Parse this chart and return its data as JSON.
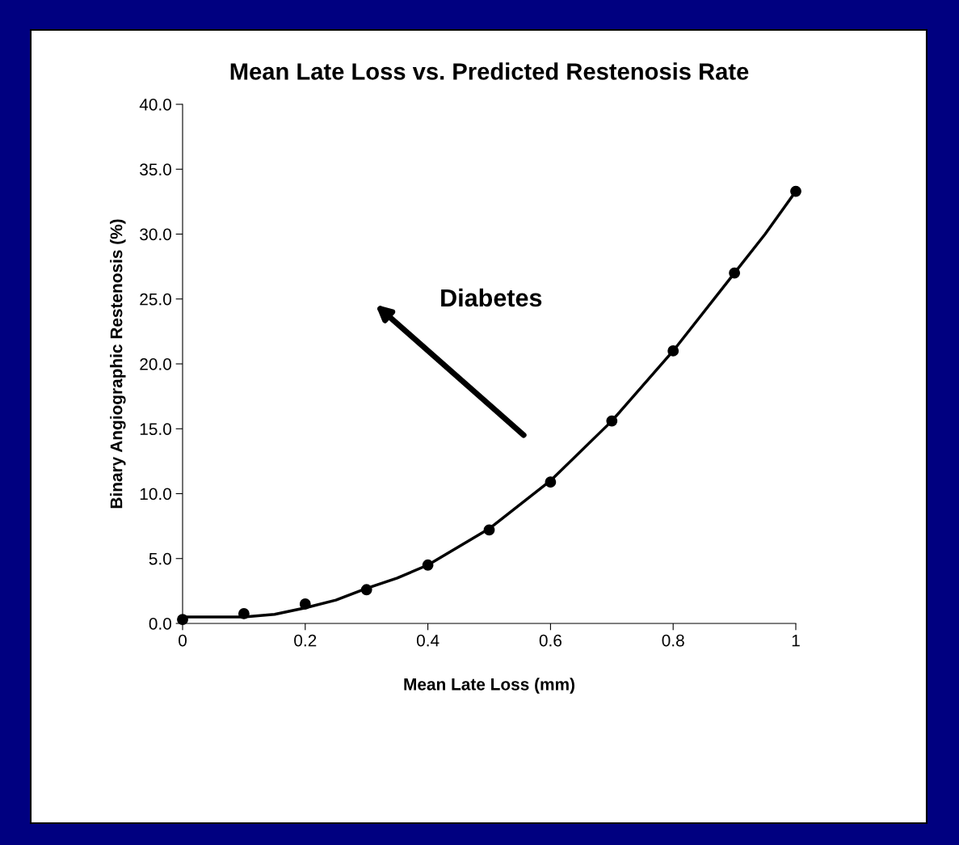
{
  "chart_data": {
    "type": "scatter",
    "title": "Mean Late Loss vs. Predicted Restenosis Rate",
    "xlabel": "Mean Late Loss (mm)",
    "ylabel": "Binary Angiographic Restenosis (%)",
    "annotations": [
      "Diabetes"
    ],
    "xlim": [
      0,
      1
    ],
    "xticks": [
      0,
      0.2,
      0.4,
      0.6,
      0.8,
      1
    ],
    "ylim": [
      0,
      40
    ],
    "yticks": [
      {
        "value": 0,
        "label": "0.0"
      },
      {
        "value": 5,
        "label": "5.0"
      },
      {
        "value": 10,
        "label": "10.0"
      },
      {
        "value": 15,
        "label": "15.0"
      },
      {
        "value": 20,
        "label": "20.0"
      },
      {
        "value": 25,
        "label": "25.0"
      },
      {
        "value": 30,
        "label": "30.0"
      },
      {
        "value": 35,
        "label": "35.0"
      },
      {
        "value": 40,
        "label": "40.0"
      }
    ],
    "grid": false,
    "legend": false,
    "series": [
      {
        "type": "line",
        "color": "#000000",
        "marker": "none",
        "line_style": "solid",
        "x": [
          0,
          0.1,
          0.15,
          0.2,
          0.25,
          0.3,
          0.35,
          0.4,
          0.5,
          0.6,
          0.7,
          0.8,
          0.9,
          0.95,
          1.0
        ],
        "values": [
          0.5,
          0.5,
          0.7,
          1.2,
          1.8,
          2.7,
          3.5,
          4.5,
          7.3,
          11.0,
          15.6,
          21.0,
          27.0,
          30.0,
          33.3
        ]
      },
      {
        "color": "#000000",
        "marker": "circle",
        "x": [
          0,
          0.1,
          0.2,
          0.3,
          0.4,
          0.5,
          0.6,
          0.7,
          0.8,
          0.9,
          1.0
        ],
        "values": [
          0.3,
          0.75,
          1.5,
          2.6,
          4.5,
          7.2,
          10.9,
          15.6,
          21.0,
          27.0,
          33.3
        ]
      }
    ]
  }
}
